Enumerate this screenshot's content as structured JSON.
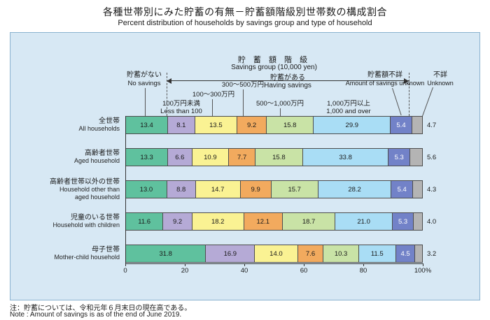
{
  "title": {
    "ja": "各種世帯別にみた貯蓄の有無－貯蓄額階級別世帯数の構成割合",
    "en": "Percent distribution of households by savings group and type of household"
  },
  "header": {
    "savings_group_ja": "貯 蓄 額 階 級",
    "savings_group_en": "Savings group (10,000 yen)",
    "having_savings_ja": "貯蓄がある",
    "having_savings_en": "Having savings"
  },
  "chart_data": {
    "type": "bar",
    "stacked": true,
    "orientation": "horizontal",
    "unit": "%",
    "xlim": [
      0,
      100
    ],
    "x_ticks": [
      "0",
      "20",
      "40",
      "60",
      "80",
      "100%"
    ],
    "background_color": "#d7e8f4",
    "segments": [
      {
        "name": "no-savings",
        "label_ja": "貯蓄がない",
        "label_en": "No savings",
        "color": "#5fc19e",
        "text": "#1a1a1a"
      },
      {
        "name": "under-100",
        "label_ja": "100万円未満",
        "label_en": "Less than 100",
        "color": "#b5aad6",
        "text": "#1a1a1a"
      },
      {
        "name": "100-300",
        "label_ja": "100～300万円",
        "label_en": "",
        "color": "#faf293",
        "text": "#1a1a1a"
      },
      {
        "name": "300-500",
        "label_ja": "300～500万円",
        "label_en": "",
        "color": "#f2aa5e",
        "text": "#1a1a1a"
      },
      {
        "name": "500-1000",
        "label_ja": "500～1,000万円",
        "label_en": "",
        "color": "#c9e3a6",
        "text": "#1a1a1a"
      },
      {
        "name": "1000-and-over",
        "label_ja": "1,000万円以上",
        "label_en": "1,000 and over",
        "color": "#a9ddf5",
        "text": "#1a1a1a"
      },
      {
        "name": "amount-unknown",
        "label_ja": "貯蓄額不詳",
        "label_en": "Amount of savings unknown",
        "color": "#7282c8",
        "text": "#ffffff"
      },
      {
        "name": "unknown",
        "label_ja": "不詳",
        "label_en": "Unknown",
        "color": "#b4b4b4",
        "text": "#1a1a1a",
        "label_outside": true
      }
    ],
    "rows": [
      {
        "label_ja": "全世帯",
        "label_en": [
          "All households"
        ],
        "values": [
          13.4,
          8.1,
          13.5,
          9.2,
          15.8,
          29.9,
          5.4,
          4.7
        ]
      },
      {
        "label_ja": "高齢者世帯",
        "label_en": [
          "Aged household"
        ],
        "values": [
          13.3,
          6.6,
          10.9,
          7.7,
          15.8,
          33.8,
          5.3,
          5.6
        ]
      },
      {
        "label_ja": "高齢者世帯以外の世帯",
        "label_en": [
          "Household other than",
          "aged household"
        ],
        "values": [
          13.0,
          8.8,
          14.7,
          9.9,
          15.7,
          28.2,
          5.4,
          4.3
        ]
      },
      {
        "label_ja": "児童のいる世帯",
        "label_en": [
          "Household with children"
        ],
        "values": [
          11.6,
          9.2,
          18.2,
          12.1,
          18.7,
          21.0,
          5.3,
          4.0
        ]
      },
      {
        "label_ja": "母子世帯",
        "label_en": [
          "Mother-child household"
        ],
        "values": [
          31.8,
          16.9,
          14.0,
          7.6,
          10.3,
          11.5,
          4.5,
          3.2
        ]
      }
    ]
  },
  "notes": {
    "ja": "注：貯蓄については、令和元年６月末日の現在高である。",
    "en": "Note : Amount of savings is as of the end of June 2019."
  }
}
